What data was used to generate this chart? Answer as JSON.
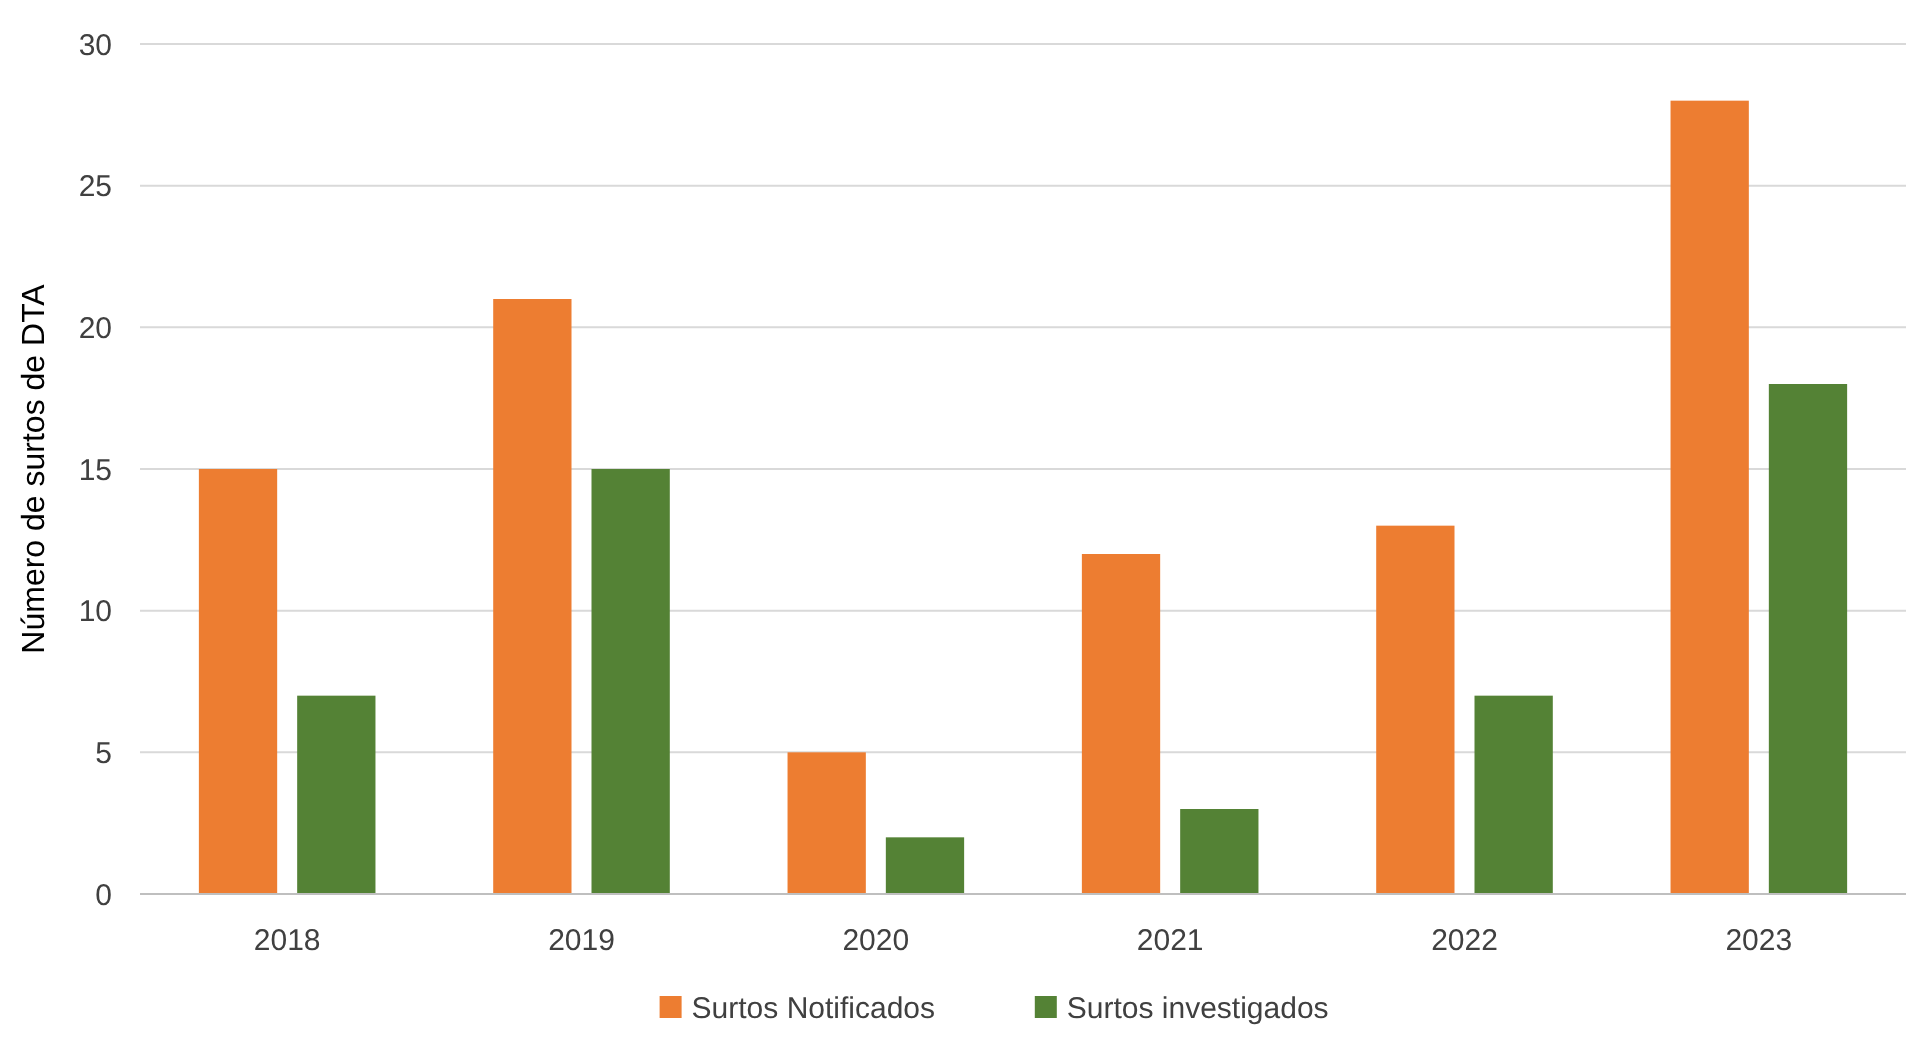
{
  "chart_data": {
    "type": "bar",
    "ylabel": "Número de surtos de DTA",
    "categories": [
      "2018",
      "2019",
      "2020",
      "2021",
      "2022",
      "2023"
    ],
    "series": [
      {
        "name": "Surtos Notificados",
        "color": "#ed7d31",
        "values": [
          15,
          21,
          5,
          12,
          13,
          28
        ]
      },
      {
        "name": "Surtos investigados",
        "color": "#548235",
        "values": [
          7,
          15,
          2,
          3,
          7,
          18
        ]
      }
    ],
    "ylim": [
      0,
      30
    ],
    "yticks": [
      0,
      5,
      10,
      15,
      20,
      25,
      30
    ],
    "grid": "y",
    "legend": "bottom"
  }
}
